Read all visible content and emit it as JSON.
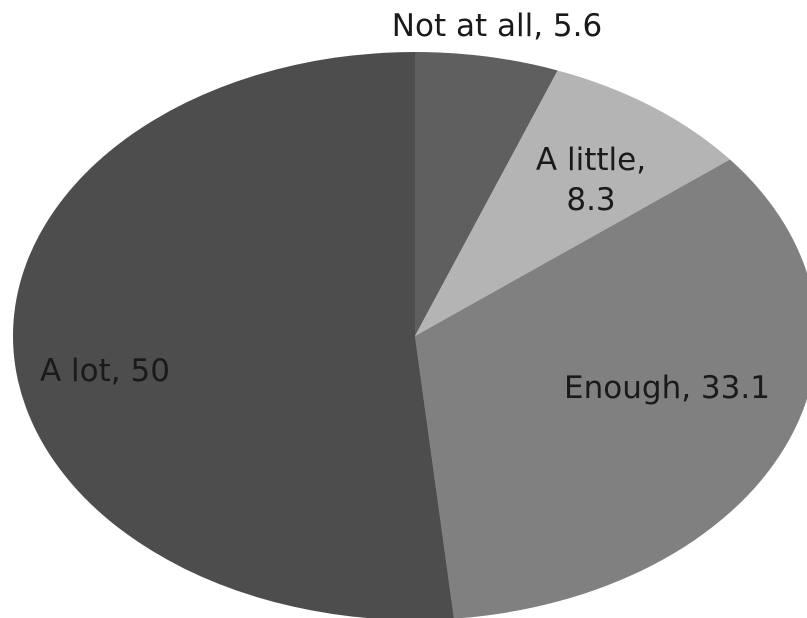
{
  "chart_data": {
    "type": "pie",
    "title": "",
    "slices": [
      {
        "label": "Not at all",
        "value": 5.6,
        "display": "Not at all, 5.6",
        "color": "#5f5f5f",
        "label_lines": [
          "Not at all, 5.6"
        ]
      },
      {
        "label": "A little",
        "value": 8.3,
        "display": "A little, 8.3",
        "color": "#b4b4b4",
        "label_lines": [
          "A little,",
          "8.3"
        ]
      },
      {
        "label": "Enough",
        "value": 33.1,
        "display": "Enough, 33.1",
        "color": "#808080",
        "label_lines": [
          "Enough, 33.1"
        ]
      },
      {
        "label": "A lot",
        "value": 50,
        "display": "A lot, 50",
        "color": "#4d4d4d",
        "label_lines": [
          "A lot, 50"
        ]
      }
    ],
    "start_angle_deg": 0,
    "direction": "clockwise",
    "legend": "none",
    "labels": "category-and-value"
  }
}
